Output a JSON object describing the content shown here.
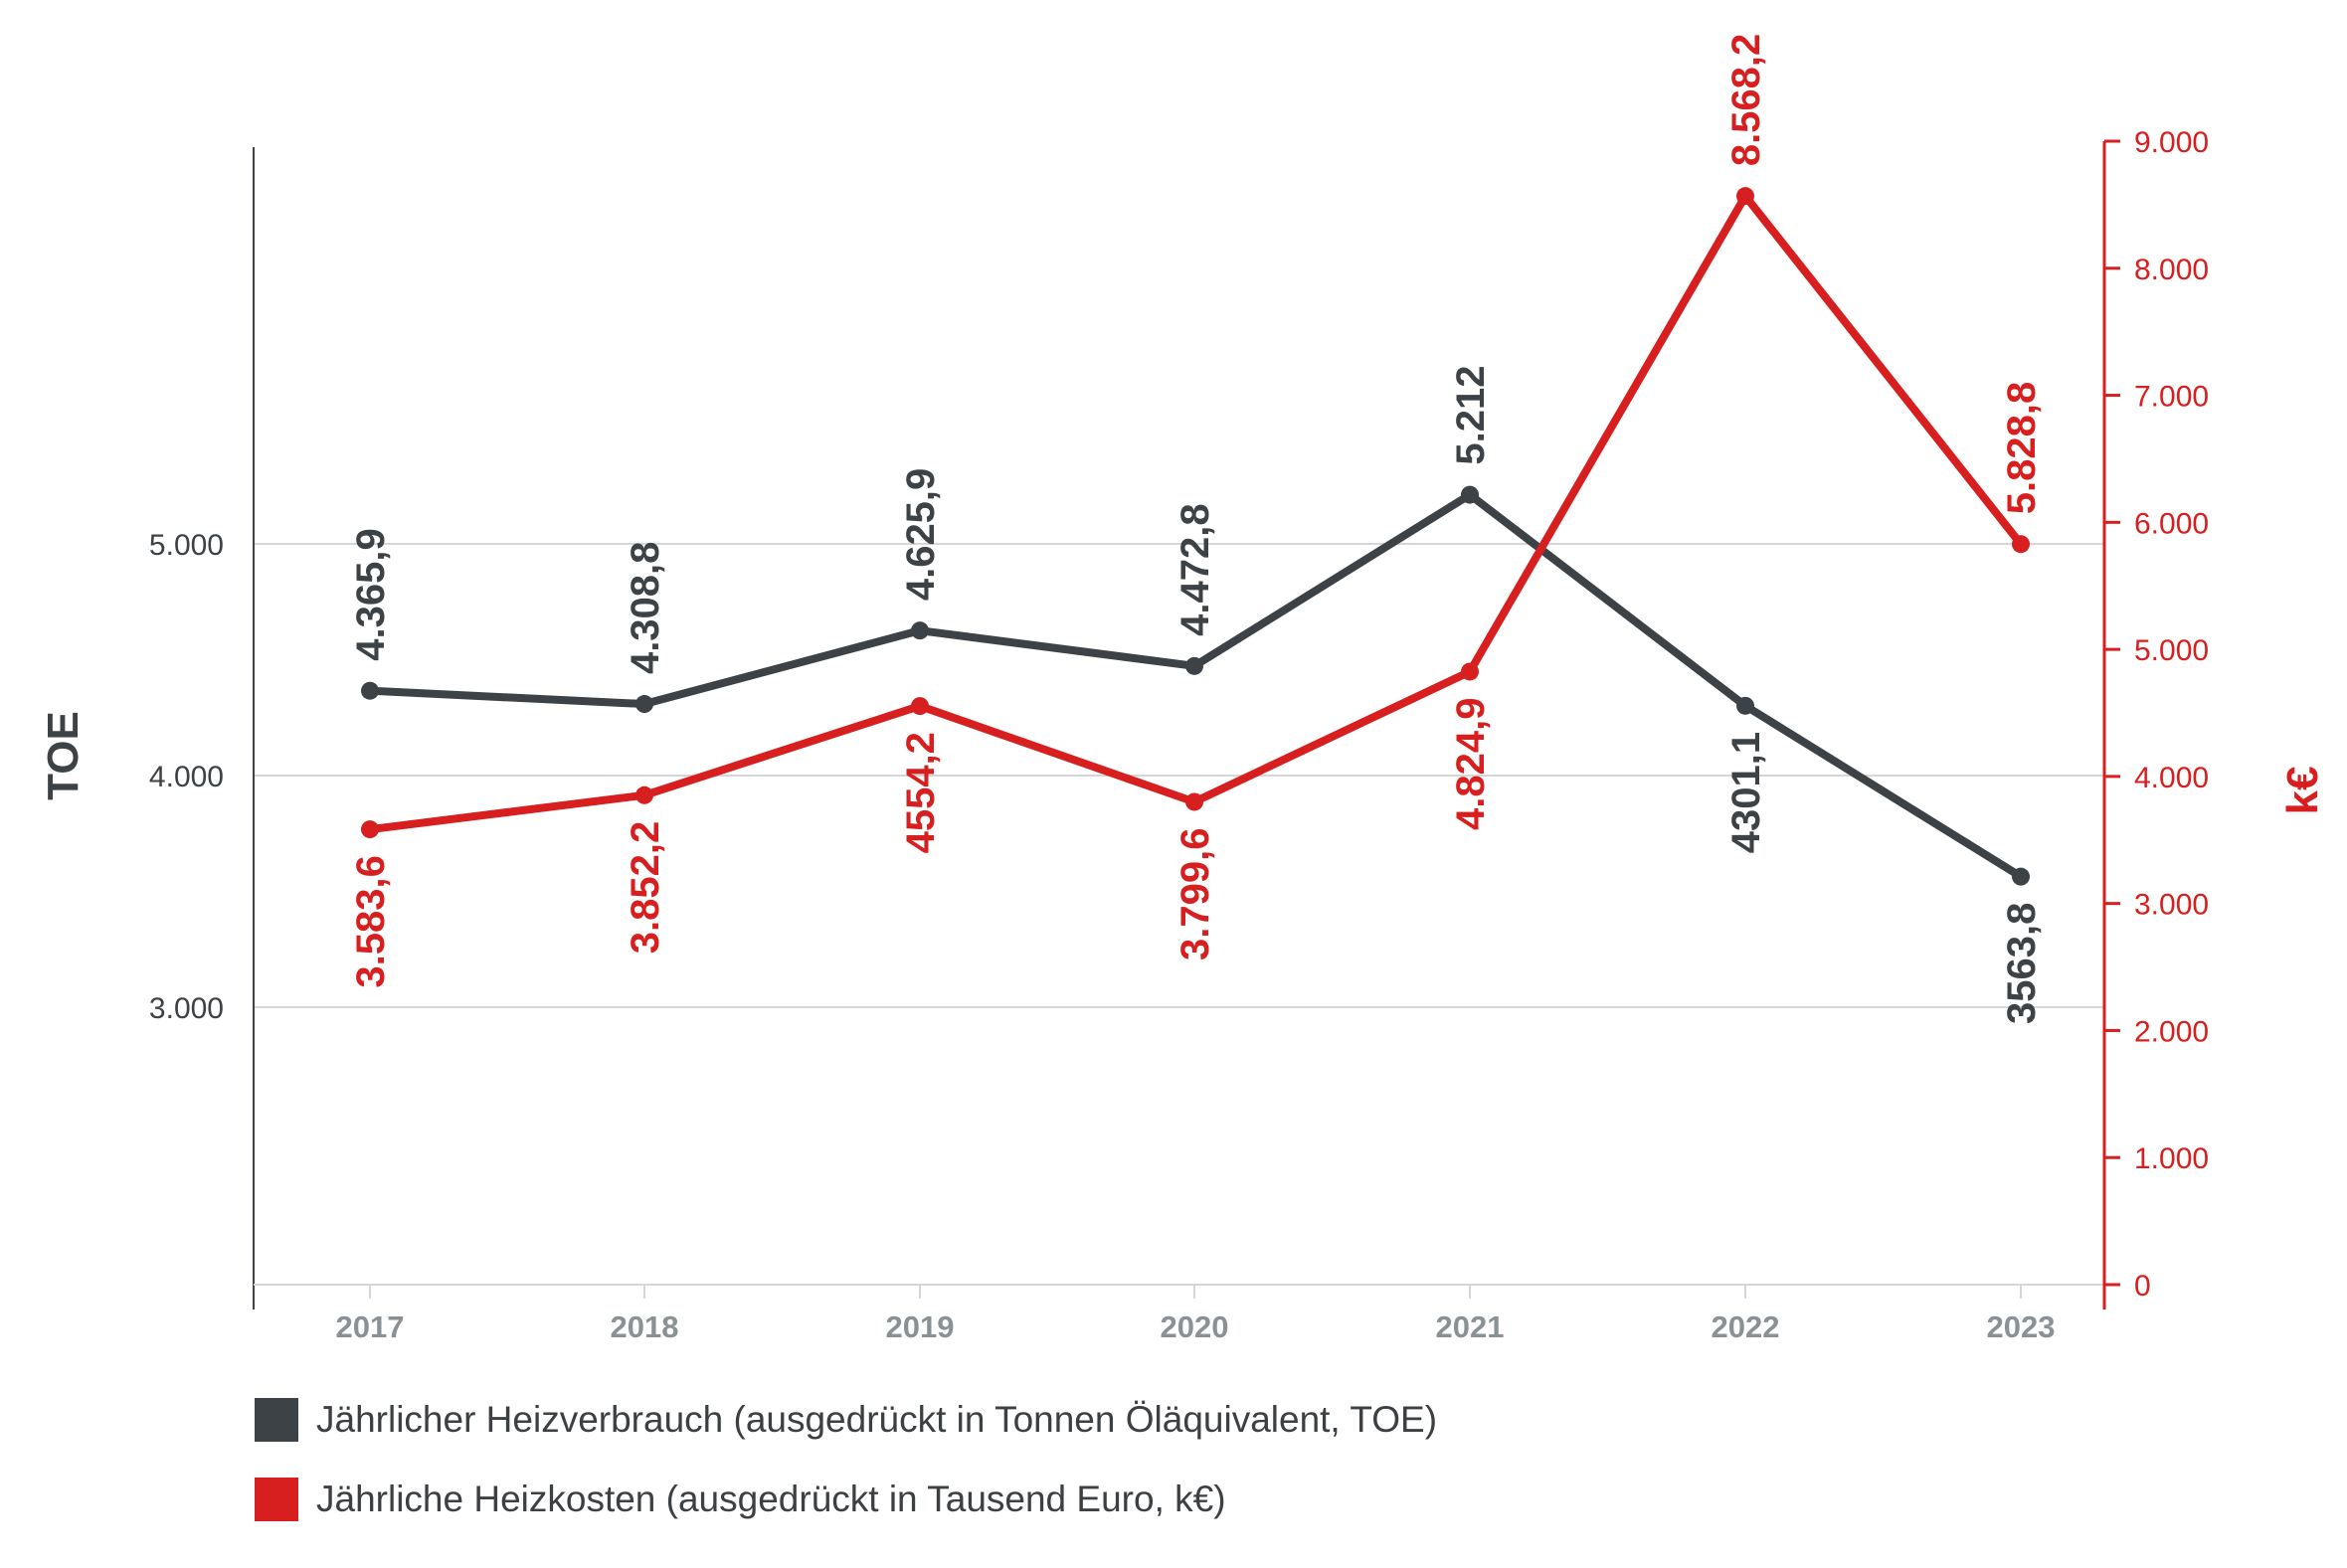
{
  "colors": {
    "consumption": "#3d4246",
    "costs": "#d81f1f",
    "grid": "#d6d6d6",
    "axis": "#3d4246",
    "year": "#8a9195"
  },
  "chart_data": {
    "type": "line",
    "categories": [
      "2017",
      "2018",
      "2019",
      "2020",
      "2021",
      "2022",
      "2023"
    ],
    "series": [
      {
        "name": "Jährlicher Heizverbrauch (ausgedrückt in Tonnen Öläquivalent, TOE)",
        "axis": "left",
        "color": "#3d4246",
        "values": [
          4365.9,
          4308.8,
          4625.9,
          4472.8,
          5212,
          4301.1,
          3563.8
        ],
        "labels": [
          "4.365,9",
          "4.308,8",
          "4.625,9",
          "4.472,8",
          "5.212",
          "4301,1",
          "3563,8"
        ]
      },
      {
        "name": "Jährliche Heizkosten (ausgedrückt in Tausend Euro, k€)",
        "axis": "right",
        "color": "#d81f1f",
        "values": [
          3583.6,
          3852.2,
          4554.2,
          3799.6,
          4824.9,
          8568.2,
          5828.8
        ],
        "labels": [
          "3.583,6",
          "3.852,2",
          "4554,2",
          "3.799,6",
          "4.824,9",
          "8.568,2",
          "5.828,8"
        ]
      }
    ],
    "y_left": {
      "title": "TOE",
      "ticks": [
        3000,
        4000,
        5000
      ],
      "tick_labels": [
        "3.000",
        "4.000",
        "5.000"
      ]
    },
    "y_right": {
      "title": "k€",
      "ylim": [
        0,
        9000
      ],
      "ticks": [
        0,
        1000,
        2000,
        3000,
        4000,
        5000,
        6000,
        7000,
        8000,
        9000
      ],
      "tick_labels": [
        "0",
        "1.000",
        "2.000",
        "3.000",
        "4.000",
        "5.000",
        "6.000",
        "7.000",
        "8.000",
        "9.000"
      ]
    },
    "grid": true,
    "legend_position": "bottom-left"
  },
  "legend": {
    "items": [
      {
        "label": "Jährlicher Heizverbrauch (ausgedrückt in Tonnen Öläquivalent, TOE)",
        "color": "#3d4246"
      },
      {
        "label": "Jährliche Heizkosten (ausgedrückt in Tausend Euro, k€)",
        "color": "#d81f1f"
      }
    ]
  }
}
